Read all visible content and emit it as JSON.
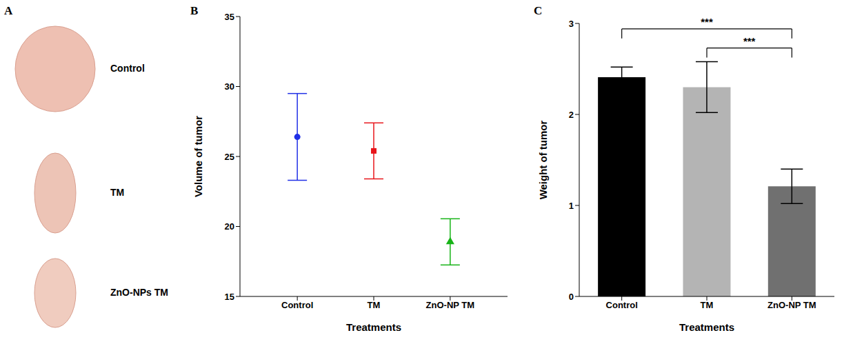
{
  "image_panel": {
    "panel": "A",
    "labels": [
      "Control",
      "TM",
      "ZnO-NPs TM"
    ]
  },
  "chart_data": [
    {
      "type": "scatter",
      "panel": "B",
      "x_label": "Treatments",
      "y_label": "Volume of tumor",
      "categories": [
        "Control",
        "TM",
        "ZnO-NP TM"
      ],
      "series": [
        {
          "name": "Control",
          "color": "#1f2fe6",
          "marker": "circle",
          "values": [
            26.4,
            null,
            null
          ],
          "errors": [
            3.1,
            null,
            null
          ]
        },
        {
          "name": "TM",
          "color": "#e8141a",
          "marker": "square",
          "values": [
            null,
            25.4,
            null
          ],
          "errors": [
            null,
            2.0,
            null
          ]
        },
        {
          "name": "ZnO-NP TM",
          "color": "#17b317",
          "marker": "triangle",
          "values": [
            null,
            null,
            18.9
          ],
          "errors": [
            null,
            null,
            1.65
          ]
        }
      ],
      "ylim": [
        15,
        35
      ],
      "yticks": [
        15,
        20,
        25,
        30,
        35
      ]
    },
    {
      "type": "bar",
      "panel": "C",
      "x_label": "Treatments",
      "y_label": "Weight of tumor",
      "categories": [
        "Control",
        "TM",
        "ZnO-NP TM"
      ],
      "values": [
        2.41,
        2.3,
        1.21
      ],
      "errors": [
        0.11,
        0.28,
        0.19
      ],
      "colors": [
        "#000000",
        "#b4b4b4",
        "#707070"
      ],
      "ylim": [
        0,
        3
      ],
      "yticks": [
        0,
        1,
        2,
        3
      ],
      "annotations": [
        {
          "from": "Control",
          "to": "ZnO-NP TM",
          "label": "***"
        },
        {
          "from": "TM",
          "to": "ZnO-NP TM",
          "label": "***"
        }
      ]
    }
  ]
}
